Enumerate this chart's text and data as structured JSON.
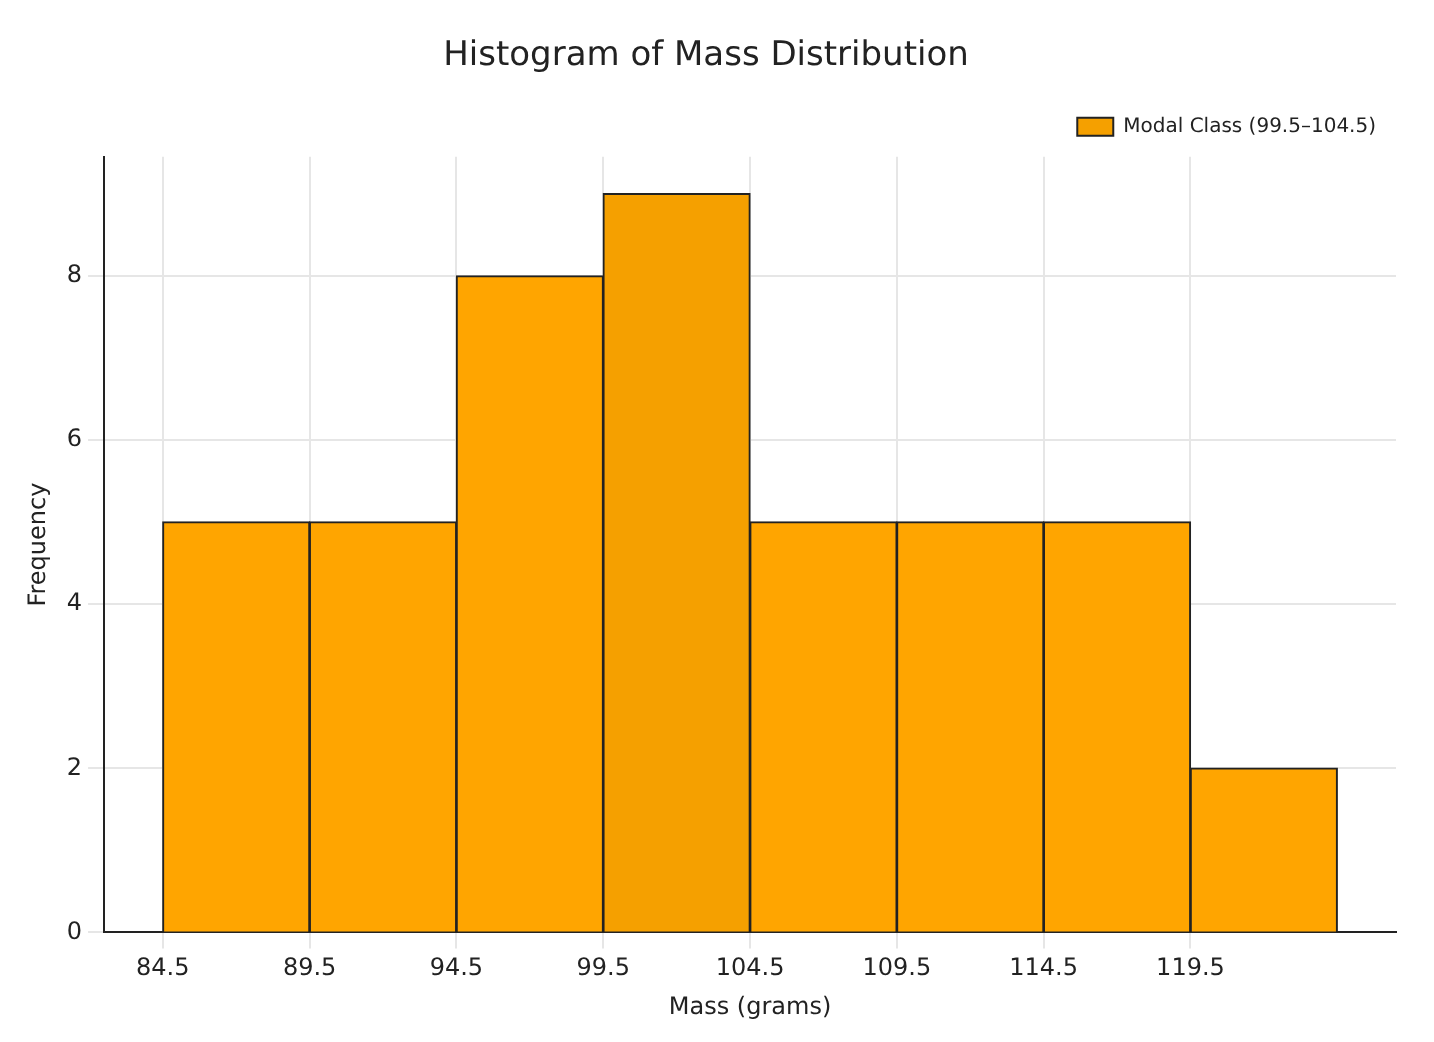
{
  "chart_data": {
    "type": "histogram",
    "title": "Histogram of Mass Distribution",
    "xlabel": "Mass (grams)",
    "ylabel": "Frequency",
    "bins": [
      84.5,
      89.5,
      94.5,
      99.5,
      104.5,
      109.5,
      114.5,
      119.5,
      124.5
    ],
    "series": [
      {
        "color": "#ffa500",
        "values": [
          5,
          5,
          8,
          null,
          5,
          5,
          5,
          2
        ]
      },
      {
        "name": "Modal Class (99.5–104.5)",
        "color": "#f5a000",
        "values": [
          null,
          null,
          null,
          9,
          null,
          null,
          null,
          null
        ]
      }
    ],
    "xlim": [
      82.5,
      126.5
    ],
    "xticks": [
      84.5,
      89.5,
      94.5,
      99.5,
      104.5,
      109.5,
      114.5,
      119.5
    ],
    "ylim": [
      0,
      9.45
    ],
    "yticks": [
      0,
      2,
      4,
      6,
      8
    ],
    "grid": true,
    "legend": "top right"
  }
}
